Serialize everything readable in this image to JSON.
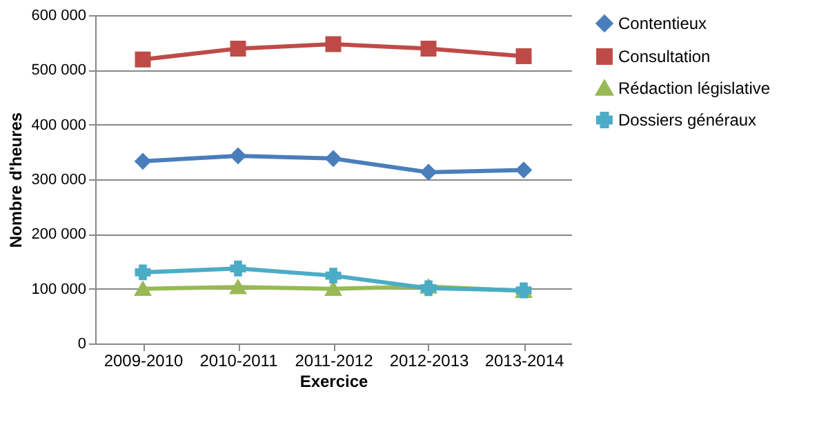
{
  "chart_data": {
    "type": "line",
    "xlabel": "Exercice",
    "ylabel": "Nombre d'heures",
    "categories": [
      "2009-2010",
      "2010-2011",
      "2011-2012",
      "2012-2013",
      "2013-2014"
    ],
    "series": [
      {
        "name": "Contentieux",
        "color": "#4a7ebb",
        "marker": "diamond",
        "values": [
          333000,
          343000,
          338000,
          313000,
          317000
        ]
      },
      {
        "name": "Consultation",
        "color": "#be4b48",
        "marker": "square",
        "values": [
          519000,
          539000,
          547000,
          539000,
          525000
        ]
      },
      {
        "name": "Rédaction législative",
        "color": "#98b954",
        "marker": "triangle",
        "values": [
          100000,
          103000,
          100000,
          104000,
          96000
        ]
      },
      {
        "name": "Dossiers généraux",
        "color": "#4bacc6",
        "marker": "cross",
        "values": [
          130000,
          137000,
          124000,
          101000,
          97000
        ]
      }
    ],
    "ylim": [
      0,
      600000
    ],
    "yticks": [
      {
        "value": 0,
        "label": "0"
      },
      {
        "value": 100000,
        "label": "100 000"
      },
      {
        "value": 200000,
        "label": "200 000"
      },
      {
        "value": 300000,
        "label": "300 000"
      },
      {
        "value": 400000,
        "label": "400 000"
      },
      {
        "value": 500000,
        "label": "500 000"
      },
      {
        "value": 600000,
        "label": "600 000"
      }
    ],
    "grid": "y",
    "legend": "right",
    "line_style": "solid"
  }
}
